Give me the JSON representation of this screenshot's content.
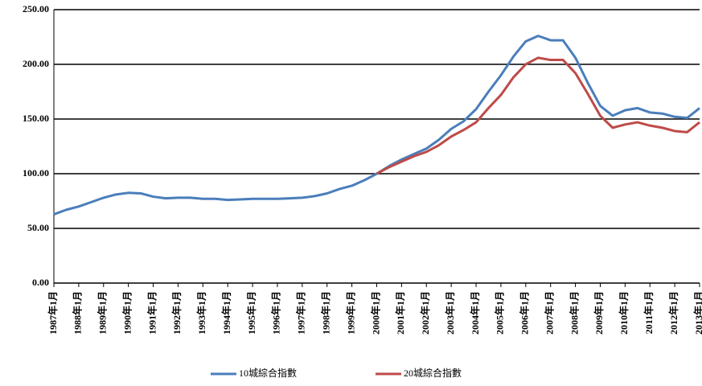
{
  "chart_data": {
    "type": "line",
    "categories": [
      "1987年1月",
      null,
      "1988年1月",
      null,
      "1989年1月",
      null,
      "1990年1月",
      null,
      "1991年1月",
      null,
      "1992年1月",
      null,
      "1993年1月",
      null,
      "1994年1月",
      null,
      "1995年1月",
      null,
      "1996年1月",
      null,
      "1997年1月",
      null,
      "1998年1月",
      null,
      "1999年1月",
      null,
      "2000年1月",
      null,
      "2001年1月",
      null,
      "2002年1月",
      null,
      "2003年1月",
      null,
      "2004年1月",
      null,
      "2005年1月",
      null,
      "2006年1月",
      null,
      "2007年1月",
      null,
      "2008年1月",
      null,
      "2009年1月",
      null,
      "2010年1月",
      null,
      "2011年1月",
      null,
      "2012年1月",
      null,
      "2013年1月"
    ],
    "series": [
      {
        "name": "10城綜合指數",
        "color": "#4a7ebb",
        "values": [
          62.8,
          67,
          70,
          74,
          78,
          81,
          82.5,
          82,
          79,
          77.5,
          78,
          78,
          77,
          77,
          76,
          76.5,
          77,
          77,
          77,
          77.5,
          78,
          79.5,
          82,
          86,
          89,
          94,
          100,
          107,
          113,
          118,
          123,
          131,
          141,
          148,
          159,
          175,
          190,
          207,
          221,
          226,
          222,
          222,
          206,
          183,
          162,
          153,
          158,
          160,
          156,
          155,
          152,
          151,
          160
        ]
      },
      {
        "name": "20城綜合指數",
        "color": "#be4b48",
        "values": [
          null,
          null,
          null,
          null,
          null,
          null,
          null,
          null,
          null,
          null,
          null,
          null,
          null,
          null,
          null,
          null,
          null,
          null,
          null,
          null,
          null,
          null,
          null,
          null,
          null,
          null,
          100,
          106,
          111,
          116,
          120,
          126,
          134,
          140,
          147,
          160,
          172,
          188,
          200,
          206,
          204,
          204,
          192,
          173,
          153,
          142,
          145,
          147,
          144,
          142,
          139,
          138,
          147
        ]
      }
    ],
    "ylim": [
      0,
      250
    ],
    "yticks": [
      {
        "value": 0,
        "label": "0.00"
      },
      {
        "value": 50,
        "label": "50.00"
      },
      {
        "value": 100,
        "label": "100.00"
      },
      {
        "value": 150,
        "label": "150.00"
      },
      {
        "value": 200,
        "label": "200.00"
      },
      {
        "value": 250,
        "label": "250.00"
      }
    ],
    "grid": true,
    "legend": "bottom"
  }
}
